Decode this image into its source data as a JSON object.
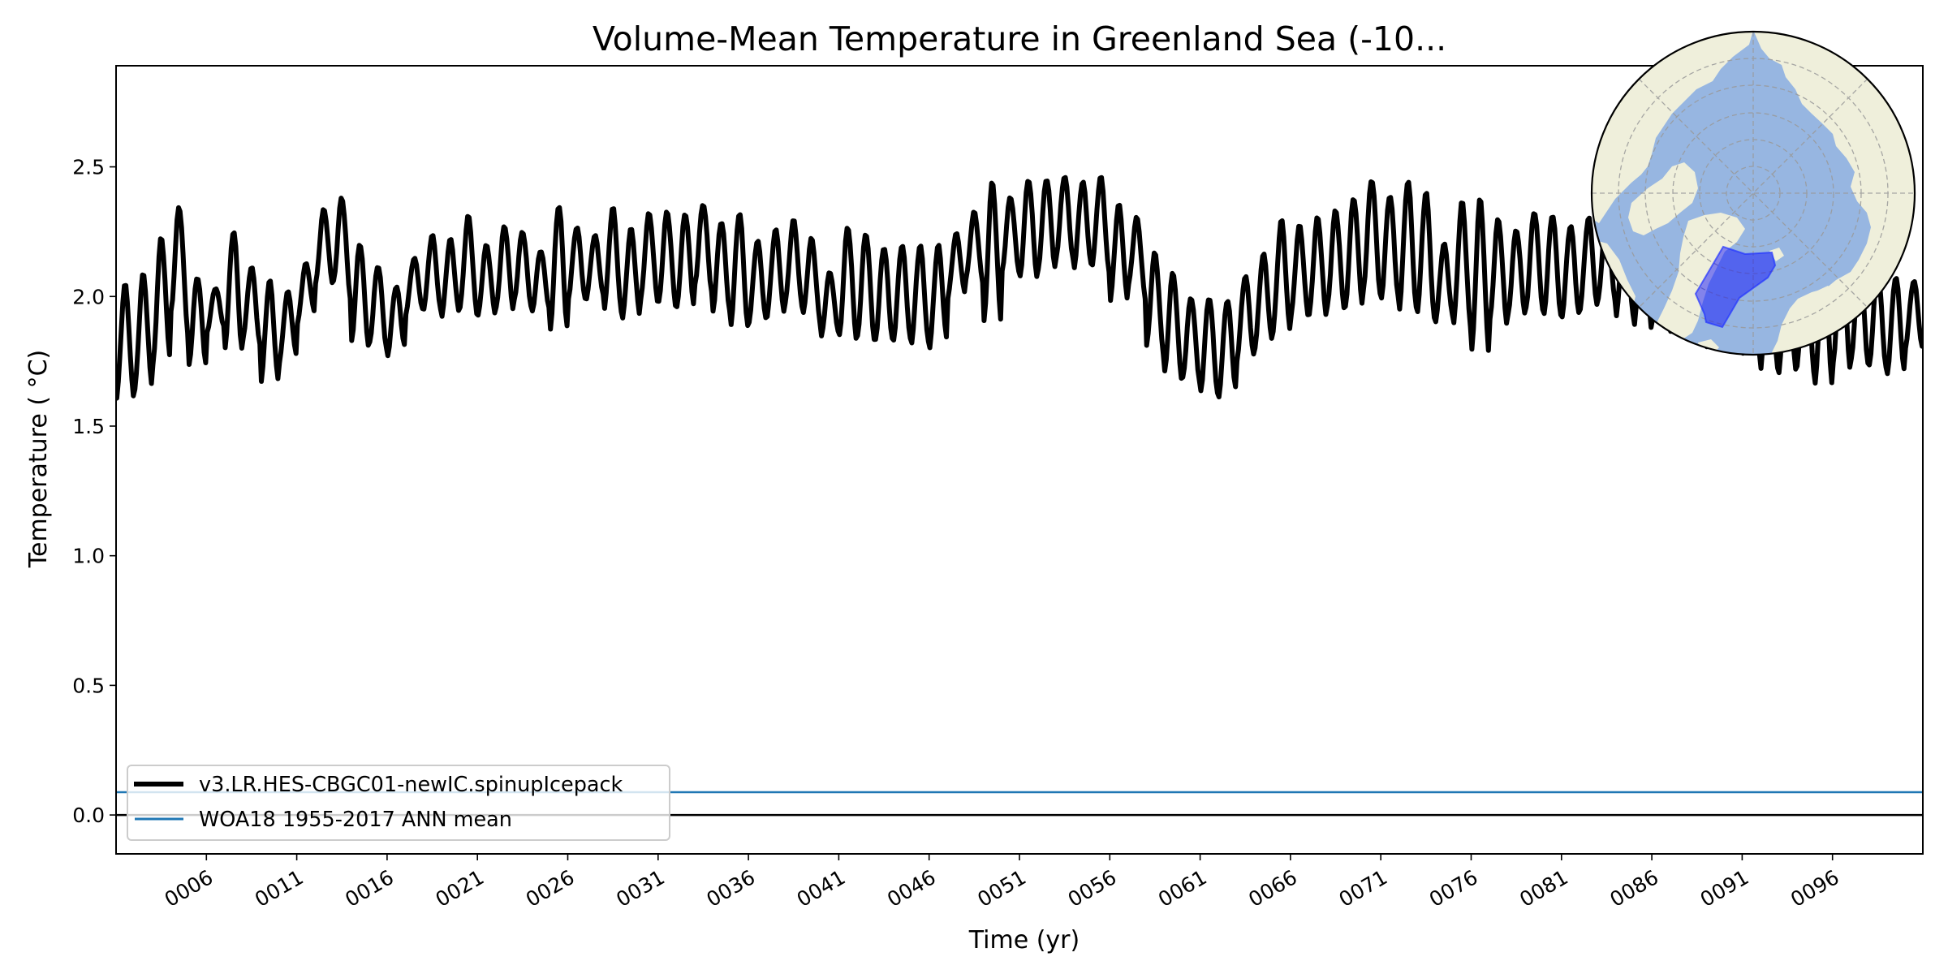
{
  "chart_data": {
    "type": "line",
    "title": "Volume-Mean Temperature in Greenland Sea (-10...",
    "xlabel": "Time (yr)",
    "ylabel": "Temperature ( °C)",
    "xlim": [
      1.0,
      101.0
    ],
    "ylim": [
      -0.15,
      2.89
    ],
    "grid": false,
    "legend_placement": "lower-left",
    "x_tick_years": [
      6,
      11,
      16,
      21,
      26,
      31,
      36,
      41,
      46,
      51,
      56,
      61,
      66,
      71,
      76,
      81,
      86,
      91,
      96
    ],
    "x_tick_labels": [
      "0006",
      "0011",
      "0016",
      "0021",
      "0026",
      "0031",
      "0036",
      "0041",
      "0046",
      "0051",
      "0056",
      "0061",
      "0066",
      "0071",
      "0076",
      "0081",
      "0086",
      "0091",
      "0096"
    ],
    "y_ticks": [
      0.0,
      0.5,
      1.0,
      1.5,
      2.0,
      2.5
    ],
    "y_tick_labels": [
      "0.0",
      "0.5",
      "1.0",
      "1.5",
      "2.0",
      "2.5"
    ],
    "series": [
      {
        "name": "v3.LR.HES-CBGC01-newIC.spinupIcepack",
        "color": "#000000",
        "sampling": "monthly",
        "years": [
          1,
          2,
          3,
          4,
          5,
          6,
          7,
          8,
          9,
          10,
          11,
          12,
          13,
          14,
          15,
          16,
          17,
          18,
          19,
          20,
          21,
          22,
          23,
          24,
          25,
          26,
          27,
          28,
          29,
          30,
          31,
          32,
          33,
          34,
          35,
          36,
          37,
          38,
          39,
          40,
          41,
          42,
          43,
          44,
          45,
          46,
          47,
          48,
          49,
          50,
          51,
          52,
          53,
          54,
          55,
          56,
          57,
          58,
          59,
          60,
          61,
          62,
          63,
          64,
          65,
          66,
          67,
          68,
          69,
          70,
          71,
          72,
          73,
          74,
          75,
          76,
          77,
          78,
          79,
          80,
          81,
          82,
          83,
          84,
          85,
          86,
          87,
          88,
          89,
          90,
          91,
          92,
          93,
          94,
          95,
          96,
          97,
          98,
          99,
          100
        ],
        "annual_max": [
          2.04,
          2.07,
          2.2,
          2.38,
          2.07,
          2.02,
          2.26,
          2.13,
          2.06,
          2.0,
          2.1,
          2.33,
          2.41,
          2.21,
          2.13,
          2.02,
          2.14,
          2.24,
          2.21,
          2.32,
          2.19,
          2.27,
          2.26,
          2.17,
          2.35,
          2.27,
          2.23,
          2.35,
          2.25,
          2.32,
          2.33,
          2.31,
          2.37,
          2.29,
          2.33,
          2.21,
          2.25,
          2.3,
          2.24,
          2.08,
          2.27,
          2.25,
          2.19,
          2.2,
          2.2,
          2.18,
          2.23,
          2.33,
          2.43,
          2.38,
          2.45,
          2.45,
          2.47,
          2.44,
          2.48,
          2.35,
          2.33,
          2.18,
          2.1,
          2.0,
          2.0,
          1.97,
          2.07,
          2.15,
          2.29,
          2.27,
          2.3,
          2.33,
          2.37,
          2.46,
          2.39,
          2.45,
          2.42,
          2.19,
          2.37,
          2.37,
          2.3,
          2.25,
          2.33,
          2.32,
          2.27,
          2.3,
          2.32,
          2.28,
          2.35,
          2.3,
          2.35,
          2.3,
          2.25,
          2.28,
          2.25,
          2.2,
          2.15,
          2.2,
          2.17,
          2.2,
          2.15,
          2.1,
          2.07,
          2.06
        ],
        "annual_min": [
          1.6,
          1.63,
          1.72,
          1.93,
          1.73,
          1.86,
          1.8,
          1.84,
          1.67,
          1.74,
          1.89,
          2.04,
          2.05,
          1.82,
          1.82,
          1.77,
          1.93,
          1.95,
          1.92,
          1.95,
          1.92,
          1.95,
          1.98,
          1.94,
          1.87,
          1.99,
          1.99,
          1.95,
          1.91,
          1.98,
          1.97,
          1.95,
          2.04,
          1.94,
          1.89,
          1.9,
          1.92,
          1.97,
          1.93,
          1.84,
          1.84,
          1.84,
          1.83,
          1.83,
          1.82,
          1.8,
          1.99,
          2.06,
          1.89,
          2.09,
          2.07,
          2.1,
          2.15,
          2.11,
          2.12,
          1.98,
          2.04,
          1.8,
          1.7,
          1.68,
          1.63,
          1.61,
          1.75,
          1.8,
          1.86,
          1.92,
          1.92,
          1.95,
          1.95,
          2.02,
          1.99,
          1.95,
          1.94,
          1.9,
          1.89,
          1.78,
          1.9,
          1.92,
          1.95,
          1.93,
          1.92,
          1.95,
          1.99,
          1.92,
          1.88,
          1.9,
          1.85,
          1.84,
          1.8,
          1.84,
          1.78,
          1.72,
          1.7,
          1.72,
          1.65,
          1.73,
          1.75,
          1.73,
          1.7,
          1.8
        ]
      },
      {
        "name": "WOA18 1955-2017 ANN mean",
        "color": "#1f77b4",
        "constant": 0.088
      }
    ],
    "reference_lines": [
      {
        "name": "zero-line",
        "y": 0.0,
        "color": "#000000"
      }
    ],
    "inset_map": {
      "projection": "north-polar-stereographic",
      "region": "Greenland Sea",
      "land_color": "#efefdb",
      "ocean_color": "#97b6e1",
      "region_color": "#0000ff",
      "gridline_color": "#999999"
    }
  }
}
